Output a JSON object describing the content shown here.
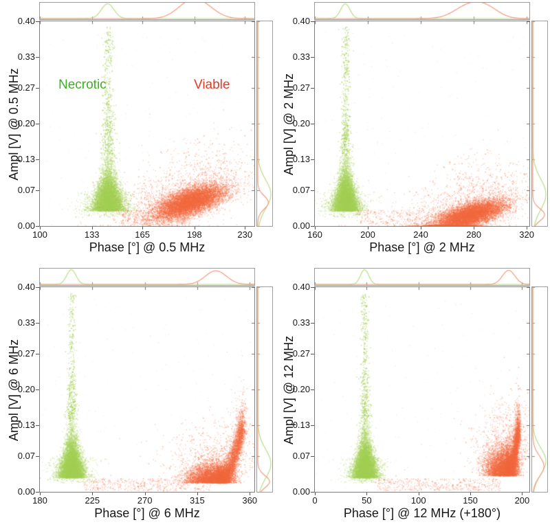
{
  "figure": {
    "annotations": {
      "necrotic": "Necrotic",
      "viable": "Viable"
    },
    "colors": {
      "necrotic_text": "#3cb020",
      "viable_text": "#e93722",
      "necrotic_dot": "#a4cf56",
      "viable_dot": "#f26840",
      "necrotic_curve": "#b9dc85",
      "viable_curve": "#f29a7c",
      "axis_text": "#161616",
      "box_border": "#7d7d7d",
      "strip_border": "#9c9c9c",
      "tick": "#555555"
    }
  },
  "chart_data": {
    "type": "scatter",
    "layout": "2x2 grid of joint scatter plots; each panel has a top marginal density strip (phase) and a right marginal density strip (amplitude)",
    "series": [
      {
        "name": "Necrotic",
        "color": "#a4cf56"
      },
      {
        "name": "Viable",
        "color": "#f26840"
      }
    ],
    "panels": [
      {
        "name": "0.5 MHz",
        "xlabel": "Phase [°] @ 0.5 MHz",
        "ylabel": "Ampl [V] @ 0.5 MHz",
        "xticks": [
          100,
          133,
          165,
          198,
          230
        ],
        "yticks": [
          "0.00",
          "0.07",
          "0.13",
          "0.20",
          "0.27",
          "0.33",
          "0.40"
        ],
        "xmin": 100,
        "xmax": 236,
        "ymin": 0,
        "ymax": 0.4,
        "necrotic": {
          "phase": 143,
          "phase_sd": 4.0,
          "ampl_base": 0.03,
          "ampl_spread": 0.032,
          "n": 9000
        },
        "viable": {
          "shape": "ellipse",
          "phase": 195,
          "phase_sd": 11,
          "ampl": 0.048,
          "ampl_sd": 0.013,
          "tilt": 0.0009,
          "n": 11000
        },
        "top_marginal": {
          "necrotic_peaks": [
            [
              143,
              4,
              1.0
            ]
          ],
          "viable_peaks": [
            [
              194,
              8,
              0.88
            ],
            [
              204,
              8,
              0.72
            ]
          ]
        },
        "right_marginal": {
          "necrotic_peaks": [
            [
              0.062,
              0.028,
              1.0
            ]
          ],
          "viable_peaks": [
            [
              0.046,
              0.013,
              0.8
            ]
          ]
        }
      },
      {
        "name": "2 MHz",
        "xlabel": "Phase [°] @ 2 MHz",
        "ylabel": "Ampl [V] @ 2 MHz",
        "xticks": [
          160,
          200,
          240,
          280,
          320
        ],
        "yticks": [
          "0.00",
          "0.07",
          "0.13",
          "0.20",
          "0.27",
          "0.33",
          "0.40"
        ],
        "xmin": 160,
        "xmax": 322,
        "ymin": 0,
        "ymax": 0.4,
        "necrotic": {
          "phase": 183,
          "phase_sd": 3.8,
          "ampl_base": 0.03,
          "ampl_spread": 0.032,
          "n": 9000
        },
        "viable": {
          "shape": "ellipse",
          "phase": 277,
          "phase_sd": 13,
          "ampl": 0.022,
          "ampl_sd": 0.011,
          "tilt": 0.0007,
          "n": 11000
        },
        "top_marginal": {
          "necrotic_peaks": [
            [
              183,
              3.5,
              1.0
            ]
          ],
          "viable_peaks": [
            [
              277,
              11,
              0.92
            ],
            [
              291,
              9,
              0.5
            ]
          ]
        },
        "right_marginal": {
          "necrotic_peaks": [
            [
              0.062,
              0.03,
              1.0
            ]
          ],
          "viable_peaks": [
            [
              0.022,
              0.012,
              0.9
            ]
          ]
        }
      },
      {
        "name": "6 MHz",
        "xlabel": "Phase [°] @ 6 MHz",
        "ylabel": "Ampl [V] @ 6 MHz",
        "xticks": [
          180,
          225,
          270,
          315,
          360
        ],
        "yticks": [
          "0.00",
          "0.07",
          "0.13",
          "0.20",
          "0.27",
          "0.33",
          "0.40"
        ],
        "xmin": 180,
        "xmax": 364,
        "ymin": 0,
        "ymax": 0.4,
        "necrotic": {
          "phase": 207,
          "phase_sd": 4.2,
          "ampl_base": 0.028,
          "ampl_spread": 0.032,
          "n": 9000
        },
        "viable": {
          "shape": "comma",
          "phase": 331,
          "phase_sd": 9,
          "ampl": 0.018,
          "ampl_sd": 0.012,
          "arm_dx": 20,
          "arm_dy": 0.1,
          "n": 11000
        },
        "top_marginal": {
          "necrotic_peaks": [
            [
              207,
              4,
              1.0
            ]
          ],
          "viable_peaks": [
            [
              331,
              9,
              0.92
            ]
          ]
        },
        "right_marginal": {
          "necrotic_peaks": [
            [
              0.055,
              0.028,
              1.0
            ]
          ],
          "viable_peaks": [
            [
              0.02,
              0.012,
              0.9
            ]
          ]
        }
      },
      {
        "name": "12 MHz",
        "xlabel": "Phase [°] @ 12 MHz (+180°)",
        "ylabel": "Ampl [V] @ 12 MHz",
        "xticks": [
          0,
          50,
          100,
          150,
          200
        ],
        "yticks": [
          "0.00",
          "0.07",
          "0.13",
          "0.20",
          "0.27",
          "0.33",
          "0.40"
        ],
        "xmin": 0,
        "xmax": 207,
        "ymin": 0,
        "ymax": 0.4,
        "necrotic": {
          "phase": 48,
          "phase_sd": 4.5,
          "ampl_base": 0.028,
          "ampl_spread": 0.032,
          "n": 9000
        },
        "viable": {
          "shape": "comma",
          "phase": 184,
          "phase_sd": 7,
          "ampl": 0.032,
          "ampl_sd": 0.018,
          "arm_dx": 10,
          "arm_dy": 0.08,
          "n": 11000
        },
        "top_marginal": {
          "necrotic_peaks": [
            [
              48,
              4,
              1.0
            ]
          ],
          "viable_peaks": [
            [
              187,
              6,
              0.95
            ]
          ]
        },
        "right_marginal": {
          "necrotic_peaks": [
            [
              0.06,
              0.026,
              1.0
            ]
          ],
          "viable_peaks": [
            [
              0.05,
              0.02,
              0.85
            ]
          ]
        }
      }
    ]
  }
}
